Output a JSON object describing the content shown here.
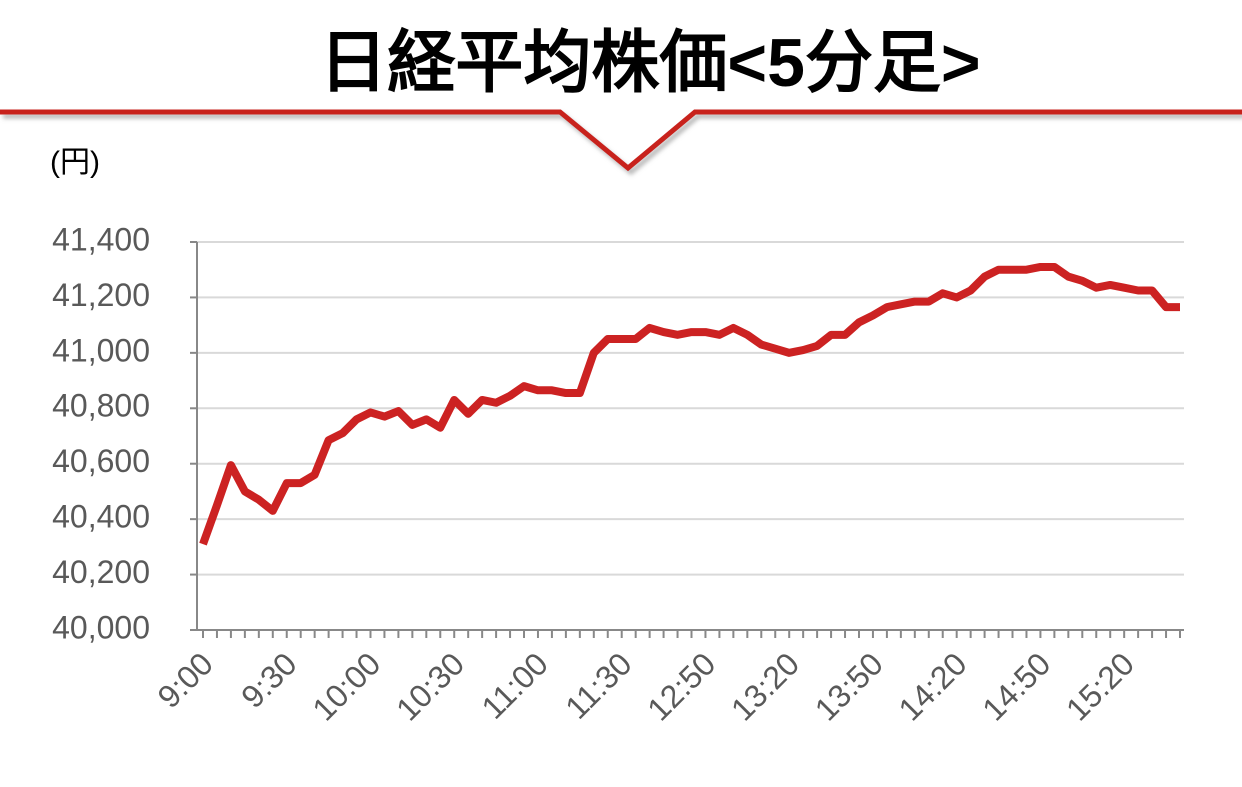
{
  "chart_data": {
    "type": "line",
    "title": "日経平均株価<5分足>",
    "y_label": "(円)",
    "categories": [
      "9:00",
      null,
      null,
      null,
      null,
      null,
      "9:30",
      null,
      null,
      null,
      null,
      null,
      "10:00",
      null,
      null,
      null,
      null,
      null,
      "10:30",
      null,
      null,
      null,
      null,
      null,
      "11:00",
      null,
      null,
      null,
      null,
      null,
      "11:30",
      null,
      null,
      null,
      null,
      null,
      "12:50",
      null,
      null,
      null,
      null,
      null,
      "13:20",
      null,
      null,
      null,
      null,
      null,
      "13:50",
      null,
      null,
      null,
      null,
      null,
      "14:20",
      null,
      null,
      null,
      null,
      null,
      "14:50",
      null,
      null,
      null,
      null,
      null,
      "15:20",
      null,
      null,
      null,
      null
    ],
    "series": [
      {
        "name": "日経平均株価",
        "color": "#cc2222",
        "values": [
          40310,
          40450,
          40595,
          40500,
          40470,
          40430,
          40530,
          40530,
          40560,
          40685,
          40710,
          40760,
          40785,
          40770,
          40790,
          40740,
          40760,
          40730,
          40830,
          40780,
          40830,
          40820,
          40845,
          40880,
          40865,
          40865,
          40855,
          40855,
          41000,
          41050,
          41050,
          41050,
          41090,
          41075,
          41065,
          41075,
          41075,
          41065,
          41090,
          41065,
          41030,
          41015,
          41000,
          41010,
          41025,
          41065,
          41065,
          41110,
          41135,
          41165,
          41175,
          41185,
          41185,
          41215,
          41200,
          41225,
          41275,
          41300,
          41300,
          41300,
          41310,
          41310,
          41275,
          41260,
          41235,
          41245,
          41235,
          41225,
          41225,
          41165,
          41165
        ]
      }
    ],
    "ylim": [
      40000,
      41400
    ],
    "yticks": [
      {
        "value": 40000,
        "label": "40,000"
      },
      {
        "value": 40200,
        "label": "40,200"
      },
      {
        "value": 40400,
        "label": "40,400"
      },
      {
        "value": 40600,
        "label": "40,600"
      },
      {
        "value": 40800,
        "label": "40,800"
      },
      {
        "value": 41000,
        "label": "41,000"
      },
      {
        "value": 41200,
        "label": "41,200"
      },
      {
        "value": 41400,
        "label": "41,400"
      }
    ],
    "grid": true
  }
}
